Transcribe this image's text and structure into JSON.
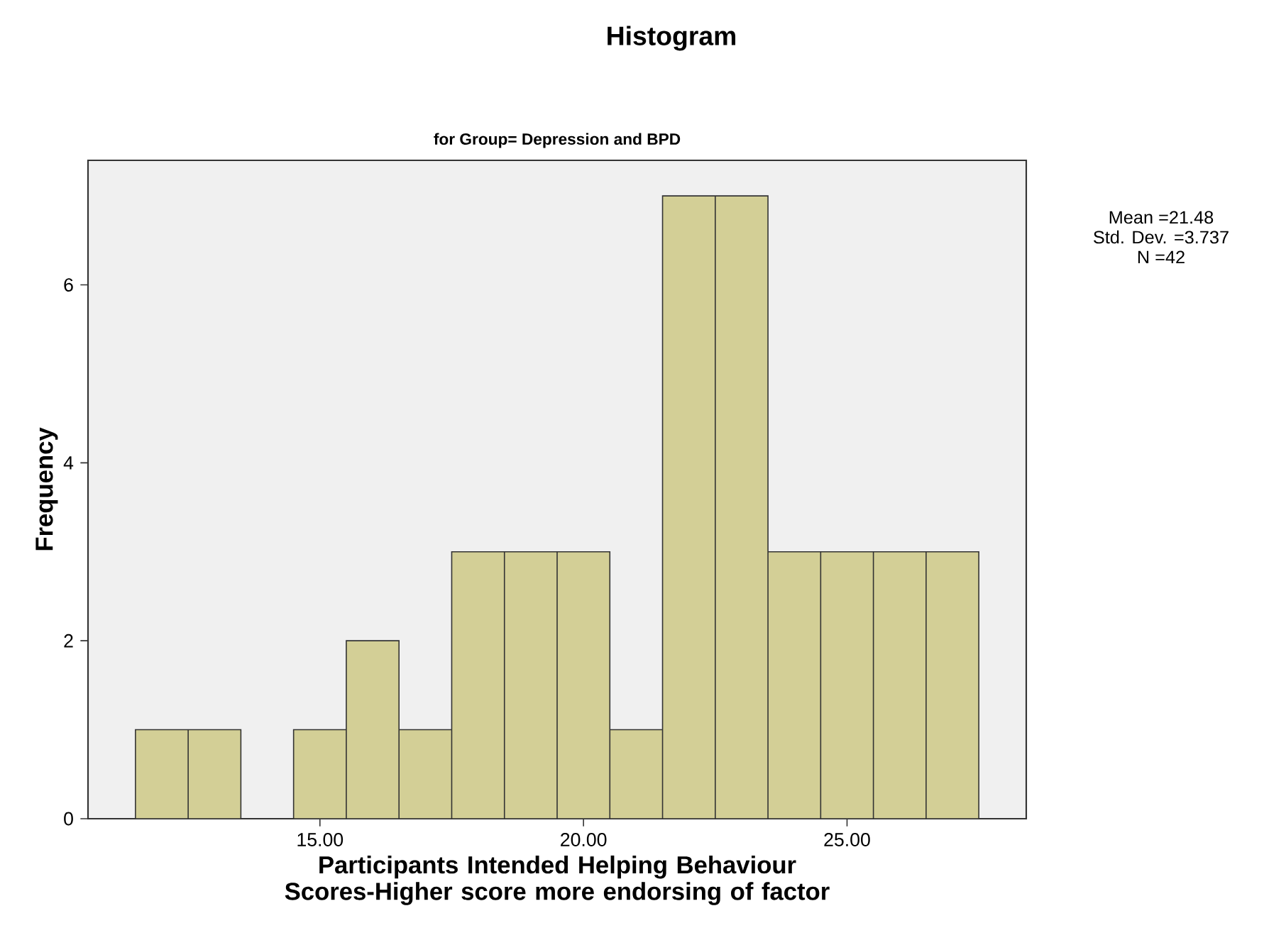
{
  "chart_data": {
    "type": "histogram",
    "title": "Histogram",
    "subtitle": "for Group= Depression and BPD",
    "xlabel": "Participants Intended Helping Behaviour Scores-Higher score more endorsing of factor",
    "ylabel": "Frequency",
    "annotations": [
      "Mean =21.48",
      "Std. Dev. =3.737",
      "N =42"
    ],
    "bins": [
      11.5,
      12.5,
      13.5,
      14.5,
      15.5,
      16.5,
      17.5,
      18.5,
      19.5,
      20.5,
      21.5,
      22.5,
      23.5,
      24.5,
      25.5,
      26.5,
      27.5
    ],
    "values": [
      1,
      1,
      0,
      1,
      2,
      1,
      3,
      3,
      3,
      1,
      7,
      7,
      3,
      3,
      3,
      3
    ],
    "color": "#d3cf96",
    "xlim": [
      10.6,
      28.4
    ],
    "ylim": [
      0,
      7.4
    ],
    "xticks": [
      {
        "value": 15,
        "label": "15.00"
      },
      {
        "value": 20,
        "label": "20.00"
      },
      {
        "value": 25,
        "label": "25.00"
      }
    ],
    "yticks": [
      0,
      2,
      4,
      6
    ]
  }
}
